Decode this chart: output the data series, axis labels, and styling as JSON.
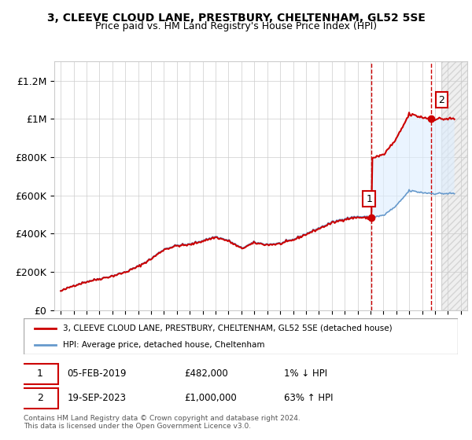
{
  "title1": "3, CLEEVE CLOUD LANE, PRESTBURY, CHELTENHAM, GL52 5SE",
  "title2": "Price paid vs. HM Land Registry's House Price Index (HPI)",
  "ylim": [
    0,
    1300000
  ],
  "yticks": [
    0,
    200000,
    400000,
    600000,
    800000,
    1000000,
    1200000
  ],
  "ytick_labels": [
    "£0",
    "£200K",
    "£400K",
    "£600K",
    "£800K",
    "£1M",
    "£1.2M"
  ],
  "xstart_year": 1995,
  "xend_year": 2026,
  "sale1_year": 2019.09,
  "sale1_price": 482000,
  "sale1_label": "1",
  "sale1_date": "05-FEB-2019",
  "sale1_hpi_pct": "1% ↓ HPI",
  "sale2_year": 2023.72,
  "sale2_price": 1000000,
  "sale2_label": "2",
  "sale2_date": "19-SEP-2023",
  "sale2_hpi_pct": "63% ↑ HPI",
  "line_color_price": "#cc0000",
  "line_color_hpi": "#6699cc",
  "dashed_color": "#cc0000",
  "shade_color_future": "#e8e8e8",
  "shade_color_between": "#ddeeff",
  "background_color": "#ffffff",
  "grid_color": "#cccccc",
  "legend_label1": "3, CLEEVE CLOUD LANE, PRESTBURY, CHELTENHAM, GL52 5SE (detached house)",
  "legend_label2": "HPI: Average price, detached house, Cheltenham",
  "footer": "Contains HM Land Registry data © Crown copyright and database right 2024.\nThis data is licensed under the Open Government Licence v3.0.",
  "annotation1": "£482,000",
  "annotation2": "£1,000,000"
}
